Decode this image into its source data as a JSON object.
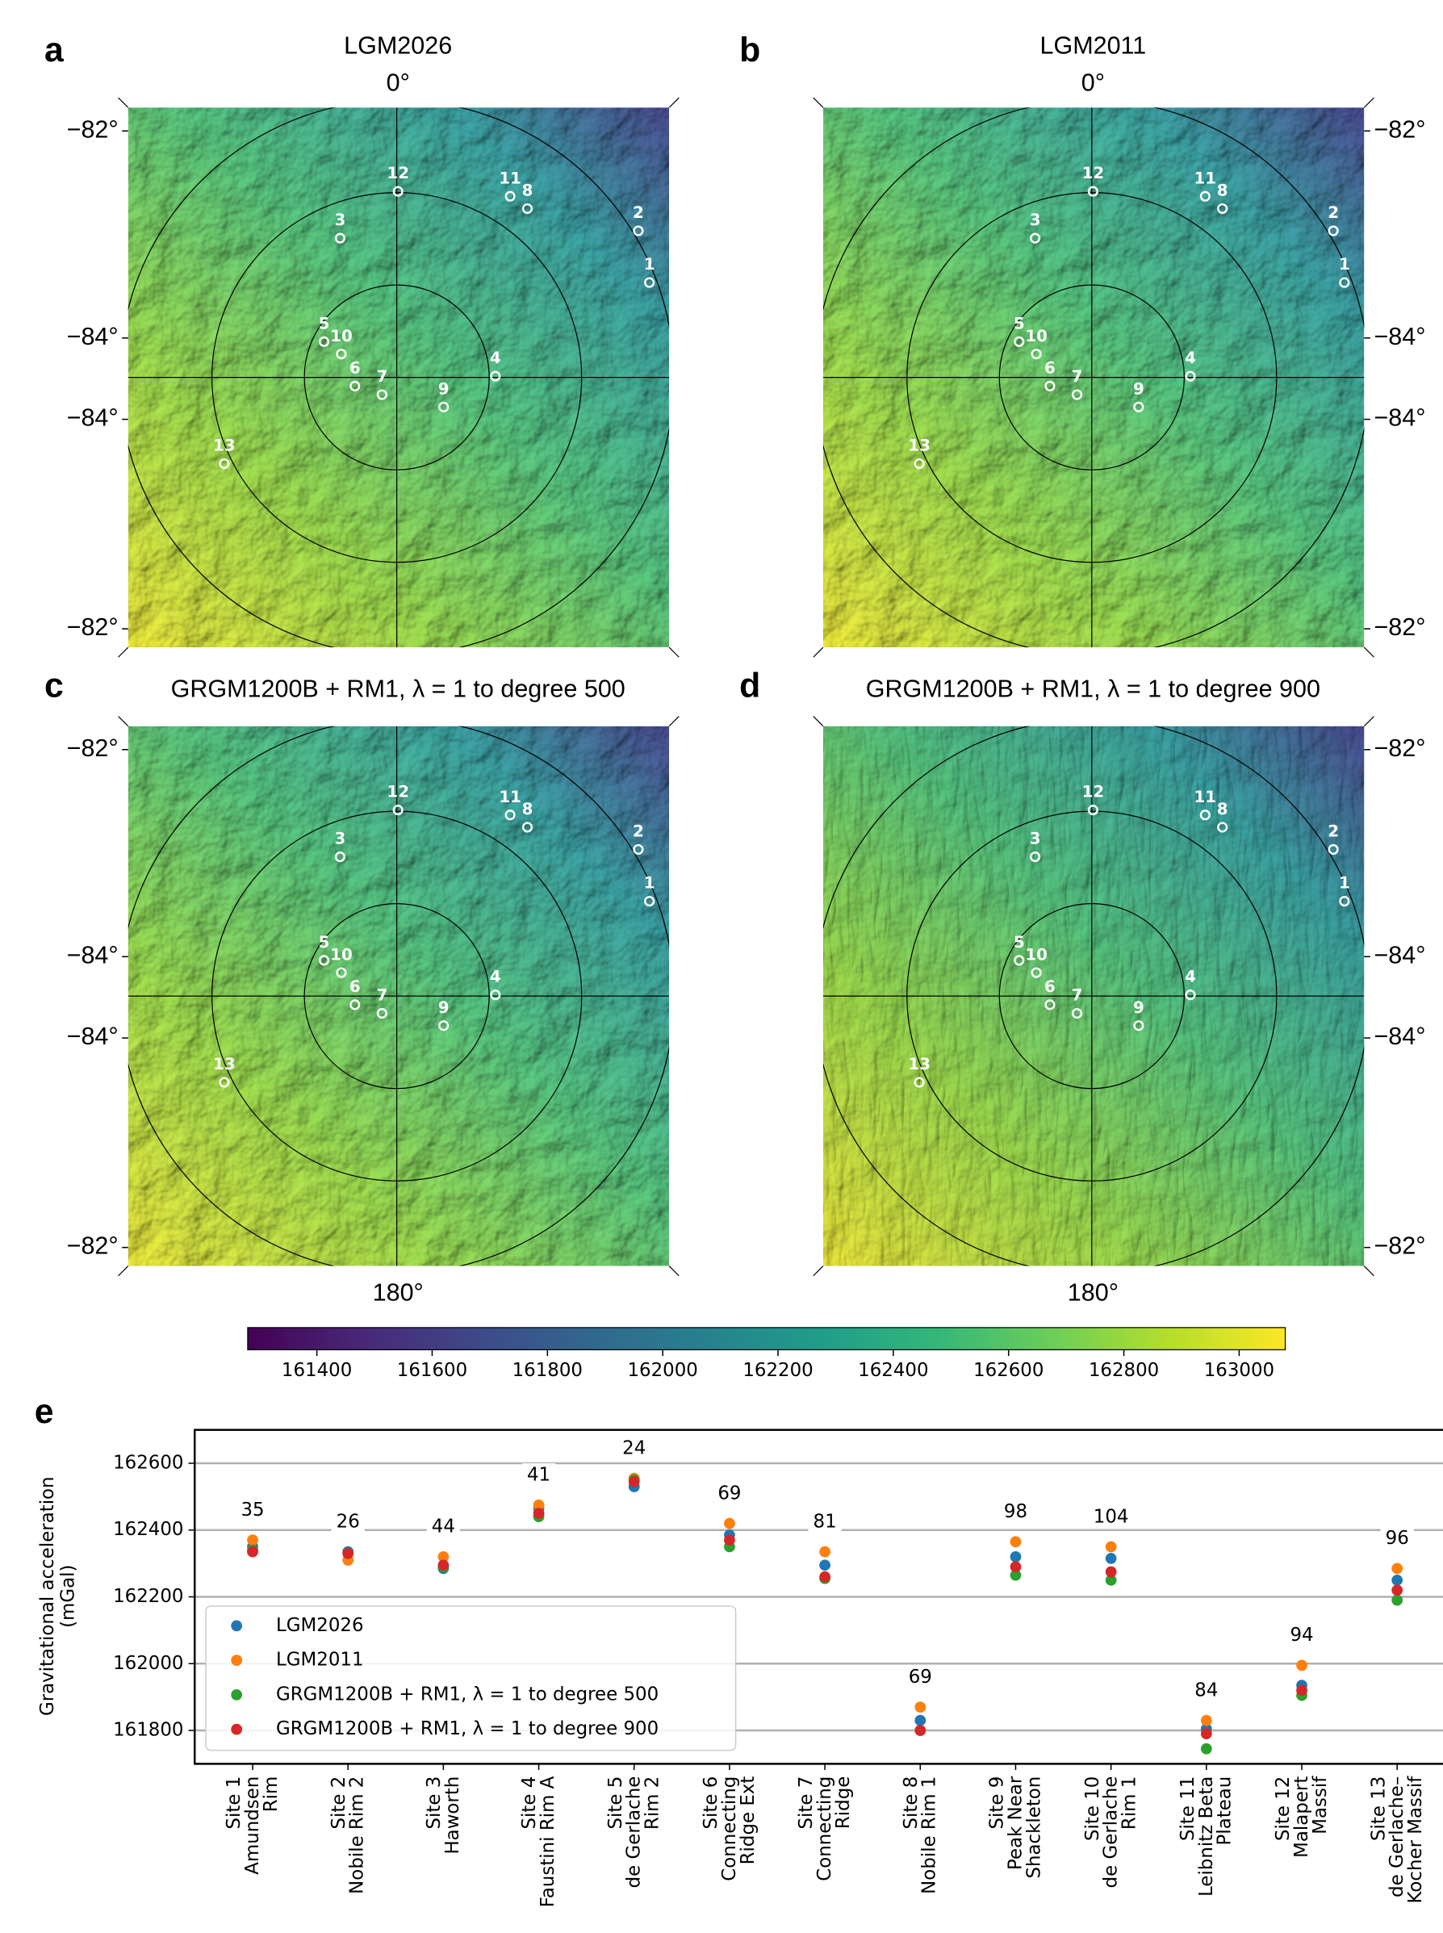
{
  "maps": {
    "lon_top": "0°",
    "lon_bottom": "180°",
    "lat_labels": [
      "−82°",
      "−84°",
      "−84°",
      "−82°"
    ],
    "site_labels": [
      "1",
      "2",
      "3",
      "4",
      "5",
      "6",
      "7",
      "8",
      "9",
      "10",
      "11",
      "12",
      "13"
    ],
    "panels": [
      {
        "letter": "a",
        "title": "LGM2026"
      },
      {
        "letter": "b",
        "title": "LGM2011"
      },
      {
        "letter": "c",
        "title": "GRGM1200B + RM1, λ = 1 to degree 500"
      },
      {
        "letter": "d",
        "title": "GRGM1200B + RM1, λ = 1 to degree 900"
      }
    ]
  },
  "chart_data": [
    {
      "type": "colorbar",
      "xlim": [
        161280,
        163080
      ],
      "xticks": [
        161400,
        161600,
        161800,
        162000,
        162200,
        162400,
        162600,
        162800,
        163000
      ],
      "colors": [
        "#440154",
        "#482878",
        "#3e4989",
        "#31688e",
        "#26828e",
        "#1f9e89",
        "#35b779",
        "#6ece58",
        "#b5de2b",
        "#fde725"
      ]
    },
    {
      "type": "scatter",
      "panel_label": "e",
      "ylabel": "Gravitational acceleration\n(mGal)",
      "categories": [
        "Site 1\nAmundsen\nRim",
        "Site 2\nNobile Rim 2",
        "Site 3\nHaworth",
        "Site 4\nFaustini Rim A",
        "Site 5\nde Gerlache\nRim 2",
        "Site 6\nConnecting\nRidge Ext",
        "Site 7\nConnecting\nRidge",
        "Site 8\nNobile Rim 1",
        "Site 9\nPeak Near\nShackleton",
        "Site 10\nde Gerlache\nRim 1",
        "Site 11\nLeibnitz Beta\nPlateau",
        "Site 12\nMalapert\nMassif",
        "Site 13\nde Gerlache–\nKocher Massif"
      ],
      "annotations": [
        35,
        26,
        44,
        41,
        24,
        69,
        81,
        69,
        98,
        104,
        84,
        94,
        96
      ],
      "series": [
        {
          "name": "LGM2026",
          "color": "#1f77b4",
          "values": [
            162350,
            162335,
            162285,
            162465,
            162530,
            162385,
            162295,
            161830,
            162320,
            162315,
            161805,
            161935,
            162250
          ]
        },
        {
          "name": "LGM2011",
          "color": "#ff7f0e",
          "values": [
            162370,
            162310,
            162320,
            162475,
            162555,
            162420,
            162335,
            161870,
            162365,
            162350,
            161830,
            161995,
            162285
          ]
        },
        {
          "name": "GRGM1200B + RM1, λ = 1 to degree 500",
          "color": "#2ca02c",
          "values": [
            162340,
            162330,
            162290,
            162440,
            162550,
            162350,
            162255,
            161800,
            162265,
            162250,
            161745,
            161905,
            162190
          ]
        },
        {
          "name": "GRGM1200B + RM1, λ = 1 to degree 900",
          "color": "#d62728",
          "values": [
            162335,
            162330,
            162295,
            162450,
            162545,
            162370,
            162260,
            161800,
            162290,
            162275,
            161790,
            161920,
            162220
          ]
        }
      ],
      "ylim": [
        161700,
        162700
      ],
      "yticks": [
        161800,
        162000,
        162200,
        162400,
        162600
      ],
      "grid": true,
      "legend": "lower left"
    }
  ]
}
